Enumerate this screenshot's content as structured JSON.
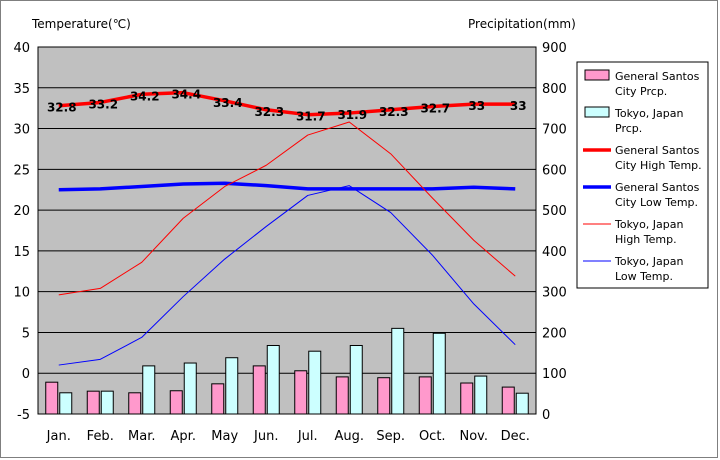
{
  "chart_data": {
    "type": "bar+line",
    "categories": [
      "Jan.",
      "Feb.",
      "Mar.",
      "Apr.",
      "May",
      "Jun.",
      "Jul.",
      "Aug.",
      "Sep.",
      "Oct.",
      "Nov.",
      "Dec."
    ],
    "y_left": {
      "label": "Temperature(℃)",
      "range": [
        -5,
        40
      ],
      "ticks": [
        -5,
        0,
        5,
        10,
        15,
        20,
        25,
        30,
        35,
        40
      ]
    },
    "y_right": {
      "label": "Precipitation(mm)",
      "range": [
        0,
        900
      ],
      "ticks": [
        0,
        100,
        200,
        300,
        400,
        500,
        600,
        700,
        800,
        900
      ]
    },
    "grid": true,
    "plot_background": "#c0c0c0",
    "legend_placement": "right",
    "bars": [
      {
        "name": "General Santos City Prcp.",
        "name_lines": [
          "General Santos",
          "City Prcp."
        ],
        "color": "#ff99cc",
        "values": [
          78,
          56,
          52,
          57,
          74,
          118,
          106,
          91,
          89,
          91,
          76,
          66
        ]
      },
      {
        "name": "Tokyo, Japan Prcp.",
        "name_lines": [
          "Tokyo, Japan",
          "Prcp."
        ],
        "color": "#ccffff",
        "values": [
          52,
          56,
          118,
          125,
          138,
          168,
          154,
          168,
          210,
          198,
          93,
          51
        ]
      }
    ],
    "lines": [
      {
        "name": "General Santos City High Temp.",
        "name_lines": [
          "General Santos",
          "City High Temp."
        ],
        "color": "#ff0000",
        "width": 3.5,
        "values": [
          32.8,
          33.2,
          34.2,
          34.4,
          33.4,
          32.3,
          31.7,
          31.9,
          32.3,
          32.7,
          33.0,
          33.0
        ],
        "data_labels": [
          "32.8",
          "33.2",
          "34.2",
          "34.4",
          "33.4",
          "32.3",
          "31.7",
          "31.9",
          "32.3",
          "32.7",
          "33",
          "33"
        ]
      },
      {
        "name": "General Santos City Low Temp.",
        "name_lines": [
          "General Santos",
          "City Low Temp."
        ],
        "color": "#0000ff",
        "width": 3.5,
        "values": [
          22.5,
          22.6,
          22.9,
          23.2,
          23.3,
          23.0,
          22.6,
          22.6,
          22.6,
          22.6,
          22.8,
          22.6
        ]
      },
      {
        "name": "Tokyo, Japan High Temp.",
        "name_lines": [
          "Tokyo, Japan",
          "High Temp."
        ],
        "color": "#ff0000",
        "width": 1,
        "values": [
          9.6,
          10.4,
          13.6,
          19.0,
          22.9,
          25.5,
          29.2,
          30.8,
          26.9,
          21.5,
          16.3,
          11.9
        ]
      },
      {
        "name": "Tokyo, Japan Low Temp.",
        "name_lines": [
          "Tokyo, Japan",
          "Low Temp."
        ],
        "color": "#0000ff",
        "width": 1,
        "values": [
          1.0,
          1.7,
          4.4,
          9.4,
          14.0,
          18.0,
          21.8,
          23.0,
          19.7,
          14.5,
          8.5,
          3.5
        ]
      }
    ]
  }
}
